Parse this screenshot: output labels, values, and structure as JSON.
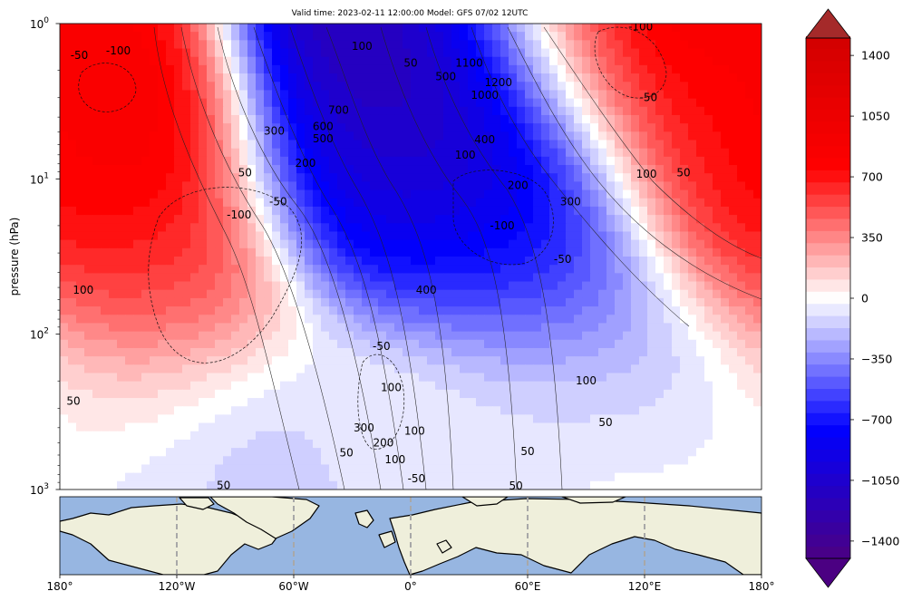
{
  "figure": {
    "title": "Valid time: 2023-02-11 12:00:00 Model: GFS 07/02 12UTC"
  },
  "chart_data": [
    {
      "type": "heatmap",
      "name": "pressure-longitude cross-section",
      "title": "Valid time: 2023-02-11 12:00:00 Model: GFS 07/02 12UTC",
      "xlabel": "",
      "ylabel": "pressure (hPa)",
      "xlim": [
        -180,
        180
      ],
      "ylim": [
        1000,
        1
      ],
      "yscale": "log",
      "ytick_labels": [
        "10^0",
        "10^1",
        "10^2",
        "10^3"
      ],
      "ytick_values": [
        1,
        10,
        100,
        1000
      ],
      "grid": false,
      "fill_field_blobs": [
        {
          "lon": -140,
          "p": 8,
          "value": 1000
        },
        {
          "lon": -150,
          "p": 30,
          "value": 700
        },
        {
          "lon": -120,
          "p": 60,
          "value": 500
        },
        {
          "lon": 90,
          "p": 1.5,
          "value": 1000
        },
        {
          "lon": 150,
          "p": 8,
          "value": 700
        },
        {
          "lon": 20,
          "p": 2,
          "value": -1400
        },
        {
          "lon": 0,
          "p": 5,
          "value": -1200
        },
        {
          "lon": -20,
          "p": 10,
          "value": -900
        },
        {
          "lon": 45,
          "p": 15,
          "value": -1100
        },
        {
          "lon": 30,
          "p": 30,
          "value": -700
        },
        {
          "lon": 60,
          "p": 60,
          "value": -400
        },
        {
          "lon": 120,
          "p": 200,
          "value": -300
        },
        {
          "lon": -70,
          "p": 400,
          "value": -300
        },
        {
          "lon": 30,
          "p": 500,
          "value": -250
        },
        {
          "lon": 0,
          "p": 300,
          "value": 250
        },
        {
          "lon": -150,
          "p": 300,
          "value": 150
        },
        {
          "lon": 100,
          "p": 500,
          "value": 120
        },
        {
          "lon": -130,
          "p": 900,
          "value": -120
        }
      ],
      "contour_labels": [
        {
          "text": "-50",
          "lon": -170,
          "p": 1.6
        },
        {
          "text": "-100",
          "lon": -150,
          "p": 1.5
        },
        {
          "text": "100",
          "lon": -25,
          "p": 1.4
        },
        {
          "text": "50",
          "lon": 0,
          "p": 1.8
        },
        {
          "text": "500",
          "lon": 18,
          "p": 2.2
        },
        {
          "text": "1100",
          "lon": 30,
          "p": 1.8
        },
        {
          "text": "1000",
          "lon": 38,
          "p": 2.9
        },
        {
          "text": "1200",
          "lon": 45,
          "p": 2.4
        },
        {
          "text": "-100",
          "lon": 118,
          "p": 1.05
        },
        {
          "text": "-50",
          "lon": 122,
          "p": 3.0
        },
        {
          "text": "700",
          "lon": -37,
          "p": 3.6
        },
        {
          "text": "600",
          "lon": -45,
          "p": 4.6
        },
        {
          "text": "500",
          "lon": -45,
          "p": 5.5
        },
        {
          "text": "300",
          "lon": -70,
          "p": 4.9
        },
        {
          "text": "400",
          "lon": 38,
          "p": 5.6
        },
        {
          "text": "100",
          "lon": 28,
          "p": 7.0
        },
        {
          "text": "200",
          "lon": -54,
          "p": 7.9
        },
        {
          "text": "50",
          "lon": -85,
          "p": 9.1
        },
        {
          "text": "100",
          "lon": 121,
          "p": 9.3
        },
        {
          "text": "50",
          "lon": 140,
          "p": 9.1
        },
        {
          "text": "200",
          "lon": 55,
          "p": 11.0
        },
        {
          "text": "300",
          "lon": 82,
          "p": 14.0
        },
        {
          "text": "-50",
          "lon": -68,
          "p": 14.0
        },
        {
          "text": "-100",
          "lon": -88,
          "p": 17.0
        },
        {
          "text": "-100",
          "lon": 47,
          "p": 20.0
        },
        {
          "text": "-50",
          "lon": 78,
          "p": 33.0
        },
        {
          "text": "100",
          "lon": -168,
          "p": 52.0
        },
        {
          "text": "400",
          "lon": 8,
          "p": 52.0
        },
        {
          "text": "-50",
          "lon": -15,
          "p": 120.0
        },
        {
          "text": "100",
          "lon": -10,
          "p": 220.0
        },
        {
          "text": "100",
          "lon": 90,
          "p": 200.0
        },
        {
          "text": "50",
          "lon": -173,
          "p": 270.0
        },
        {
          "text": "100",
          "lon": 2,
          "p": 420.0
        },
        {
          "text": "50",
          "lon": 100,
          "p": 370.0
        },
        {
          "text": "300",
          "lon": -24,
          "p": 400.0
        },
        {
          "text": "200",
          "lon": -14,
          "p": 500.0
        },
        {
          "text": "100",
          "lon": -8,
          "p": 640.0
        },
        {
          "text": "50",
          "lon": -33,
          "p": 580.0
        },
        {
          "text": "50",
          "lon": 60,
          "p": 570.0
        },
        {
          "text": "-50",
          "lon": 3,
          "p": 850.0
        },
        {
          "text": "50",
          "lon": -96,
          "p": 940.0
        },
        {
          "text": "50",
          "lon": 54,
          "p": 950.0
        }
      ]
    },
    {
      "type": "colorbar",
      "name": "colorbar",
      "tick_values": [
        1400,
        1050,
        700,
        350,
        0,
        -350,
        -700,
        -1050,
        -1400
      ],
      "tick_labels": [
        "1400",
        "1050",
        "700",
        "350",
        "0",
        "−350",
        "−700",
        "−1050",
        "−1400"
      ],
      "vmin": -1500,
      "vmax": 1500,
      "extend": "both",
      "colors": {
        "max": "#a52a2a",
        "high": "#ff0000",
        "zero": "#ffffff",
        "low": "#0000ff",
        "min": "#4b0082"
      }
    },
    {
      "type": "map",
      "name": "locator map",
      "xlim": [
        -180,
        180
      ],
      "xtick_labels": [
        "180°",
        "120°W",
        "60°W",
        "0°",
        "60°E",
        "120°E",
        "180°"
      ],
      "xtick_values": [
        -180,
        -120,
        -60,
        0,
        60,
        120,
        180
      ],
      "gridlines": [
        -120,
        -60,
        0,
        60,
        120
      ],
      "ocean_color": "#97b6e1",
      "land_color": "#efefdb"
    }
  ]
}
